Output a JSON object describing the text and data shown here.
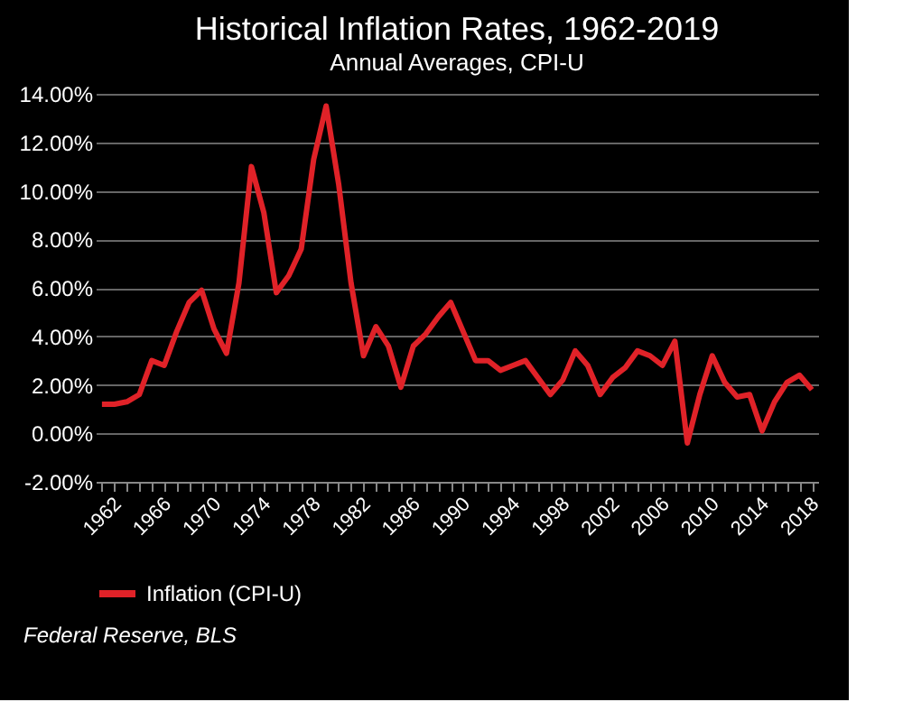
{
  "chart_data": {
    "type": "line",
    "title": "Historical Inflation Rates, 1962-2019",
    "subtitle": "Annual Averages, CPI-U",
    "categories": [
      "1962",
      null,
      null,
      null,
      "1966",
      null,
      null,
      null,
      "1970",
      null,
      null,
      null,
      "1974",
      null,
      null,
      null,
      "1978",
      null,
      null,
      null,
      "1982",
      null,
      null,
      null,
      "1986",
      null,
      null,
      null,
      "1990",
      null,
      null,
      null,
      "1994",
      null,
      null,
      null,
      "1998",
      null,
      null,
      null,
      "2002",
      null,
      null,
      null,
      "2006",
      null,
      null,
      null,
      "2010",
      null,
      null,
      null,
      "2014",
      null,
      null,
      null,
      "2018",
      null
    ],
    "series": [
      {
        "name": "Inflation (CPI-U)",
        "color": "#e02228",
        "values": [
          1.2,
          1.2,
          1.3,
          1.6,
          3.0,
          2.8,
          4.2,
          5.4,
          5.9,
          4.3,
          3.3,
          6.2,
          11.0,
          9.1,
          5.8,
          6.5,
          7.6,
          11.3,
          13.5,
          10.3,
          6.2,
          3.2,
          4.4,
          3.6,
          1.9,
          3.6,
          4.1,
          4.8,
          5.4,
          4.2,
          3.0,
          3.0,
          2.6,
          2.8,
          3.0,
          2.3,
          1.6,
          2.2,
          3.4,
          2.8,
          1.6,
          2.3,
          2.7,
          3.4,
          3.2,
          2.8,
          3.8,
          -0.4,
          1.6,
          3.2,
          2.1,
          1.5,
          1.6,
          0.1,
          1.3,
          2.1,
          2.4,
          1.8
        ]
      }
    ],
    "ylim": [
      -2,
      14
    ],
    "yticks": [
      {
        "value": -2,
        "label": "-2.00%"
      },
      {
        "value": 0,
        "label": "0.00%"
      },
      {
        "value": 2,
        "label": "2.00%"
      },
      {
        "value": 4,
        "label": "4.00%"
      },
      {
        "value": 6,
        "label": "6.00%"
      },
      {
        "value": 8,
        "label": "8.00%"
      },
      {
        "value": 10,
        "label": "10.00%"
      },
      {
        "value": 12,
        "label": "12.00%"
      },
      {
        "value": 14,
        "label": "14.00%"
      }
    ],
    "grid": "y",
    "legend": "bottom",
    "marker": "none",
    "line_style": "solid",
    "annotations": [
      "Federal Reserve, BLS"
    ]
  }
}
